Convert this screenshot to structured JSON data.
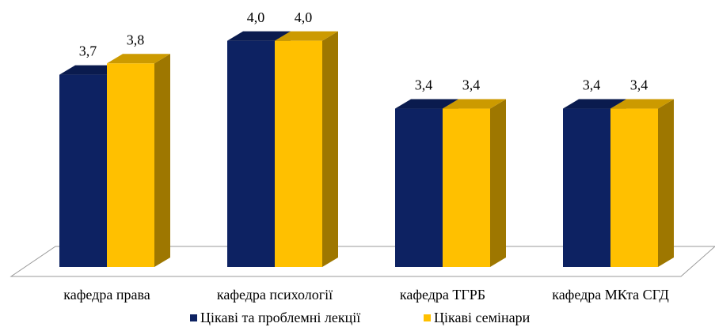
{
  "chart_data": {
    "type": "bar3d",
    "categories": [
      "кафедра права",
      "кафедра психології",
      "кафедра ТГРБ",
      "кафедра МКта СГД"
    ],
    "series": [
      {
        "name": "Цікаві та проблемні лекції",
        "color": "#0d2262",
        "values": [
          3.7,
          4.0,
          3.4,
          3.4
        ],
        "value_labels": [
          "3,7",
          "4,0",
          "3,4",
          "3,4"
        ]
      },
      {
        "name": "Цікаві семінари",
        "color": "#ffc000",
        "values": [
          3.8,
          4.0,
          3.4,
          3.4
        ],
        "value_labels": [
          "3,8",
          "4,0",
          "3,4",
          "3,4"
        ]
      }
    ],
    "ylim": [
      2,
      4.2
    ],
    "legend": "bottom"
  }
}
